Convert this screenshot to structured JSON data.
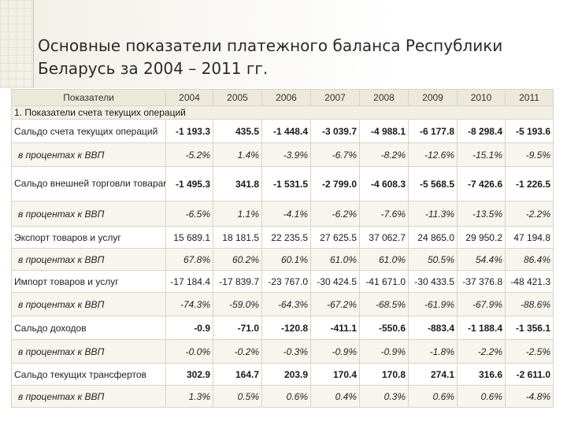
{
  "title": "Основные показатели платежного баланса Республики Беларусь за 2004 – 2011 гг.",
  "table": {
    "header_label": "Показатели",
    "years": [
      "2004",
      "2005",
      "2006",
      "2007",
      "2008",
      "2009",
      "2010",
      "2011"
    ],
    "section": "1. Показатели счета текущих операций",
    "rows": [
      {
        "label": "Сальдо счета текущих операций",
        "kind": "main",
        "values": [
          "-1 193.3",
          "435.5",
          "-1 448.4",
          "-3 039.7",
          "-4 988.1",
          "-6 177.8",
          "-8 298.4",
          "-5 193.6"
        ]
      },
      {
        "label": "в процентах к ВВП",
        "kind": "pct",
        "values": [
          "-5.2%",
          "1.4%",
          "-3.9%",
          "-6.7%",
          "-8.2%",
          "-12.6%",
          "-15.1%",
          "-9.5%"
        ]
      },
      {
        "label": "Сальдо внешней торговли товарами и услугами",
        "kind": "main",
        "values": [
          "-1 495.3",
          "341.8",
          "-1 531.5",
          "-2 799.0",
          "-4 608.3",
          "-5 568.5",
          "-7 426.6",
          "-1 226.5"
        ]
      },
      {
        "label": "в процентах к ВВП",
        "kind": "pct",
        "values": [
          "-6.5%",
          "1.1%",
          "-4.1%",
          "-6.2%",
          "-7.6%",
          "-11.3%",
          "-13.5%",
          "-2.2%"
        ]
      },
      {
        "label": "Экспорт товаров и услуг",
        "kind": "light",
        "values": [
          "15 689.1",
          "18 181.5",
          "22 235.5",
          "27 625.5",
          "37 062.7",
          "24 865.0",
          "29 950.2",
          "47 194.8"
        ]
      },
      {
        "label": "в процентах к ВВП",
        "kind": "pct",
        "values": [
          "67.8%",
          "60.2%",
          "60.1%",
          "61.0%",
          "61.0%",
          "50.5%",
          "54.4%",
          "86.4%"
        ]
      },
      {
        "label": "Импорт товаров и услуг",
        "kind": "light",
        "values": [
          "-17 184.4",
          "-17 839.7",
          "-23 767.0",
          "-30 424.5",
          "-41 671.0",
          "-30 433.5",
          "-37 376.8",
          "-48 421.3"
        ]
      },
      {
        "label": "в процентах к ВВП",
        "kind": "pct",
        "values": [
          "-74.3%",
          "-59.0%",
          "-64.3%",
          "-67.2%",
          "-68.5%",
          "-61.9%",
          "-67.9%",
          "-88.6%"
        ]
      },
      {
        "label": "Сальдо доходов",
        "kind": "main",
        "values": [
          "-0.9",
          "-71.0",
          "-120.8",
          "-411.1",
          "-550.6",
          "-883.4",
          "-1 188.4",
          "-1 356.1"
        ]
      },
      {
        "label": "в процентах к ВВП",
        "kind": "pct",
        "values": [
          "-0.0%",
          "-0.2%",
          "-0.3%",
          "-0.9%",
          "-0.9%",
          "-1.8%",
          "-2.2%",
          "-2.5%"
        ]
      },
      {
        "label": "Сальдо текущих трансфертов",
        "kind": "main",
        "values": [
          "302.9",
          "164.7",
          "203.9",
          "170.4",
          "170.8",
          "274.1",
          "316.6",
          "-2 611.0"
        ]
      },
      {
        "label": "в процентах к ВВП",
        "kind": "pct",
        "values": [
          "1.3%",
          "0.5%",
          "0.6%",
          "0.4%",
          "0.3%",
          "0.6%",
          "0.6%",
          "-4.8%"
        ]
      }
    ]
  }
}
